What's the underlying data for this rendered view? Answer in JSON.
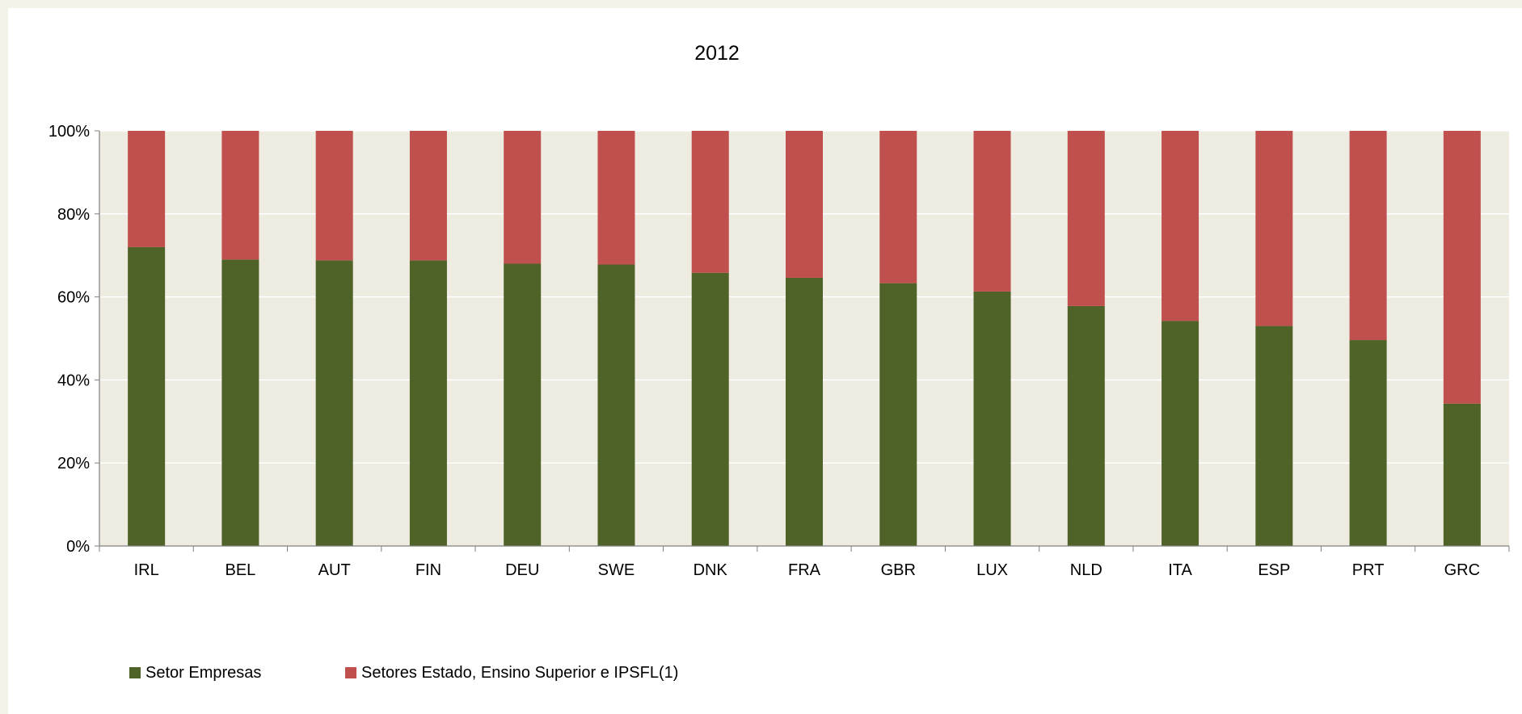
{
  "chart_data": {
    "type": "bar",
    "stacked": true,
    "title": "2012",
    "categories": [
      "IRL",
      "BEL",
      "AUT",
      "FIN",
      "DEU",
      "SWE",
      "DNK",
      "FRA",
      "GBR",
      "LUX",
      "NLD",
      "ITA",
      "ESP",
      "PRT",
      "GRC"
    ],
    "series": [
      {
        "name": "Setor Empresas",
        "color": "#4f6228",
        "values": [
          72,
          69,
          68.8,
          68.8,
          68,
          67.8,
          65.8,
          64.6,
          63.3,
          61.3,
          57.8,
          54.2,
          53,
          49.6,
          34.3
        ]
      },
      {
        "name": "Setores Estado, Ensino Superior e IPSFL(1)",
        "color": "#c0504d",
        "values": [
          28,
          31,
          31.2,
          31.2,
          32,
          32.2,
          34.2,
          35.4,
          36.7,
          38.7,
          42.2,
          45.8,
          47,
          50.4,
          65.7
        ]
      }
    ],
    "ylim": [
      0,
      100
    ],
    "yticks": [
      "0%",
      "20%",
      "40%",
      "60%",
      "80%",
      "100%"
    ],
    "grid": true,
    "plot_background": "#eeebe0",
    "legend_position": "bottom-left"
  }
}
